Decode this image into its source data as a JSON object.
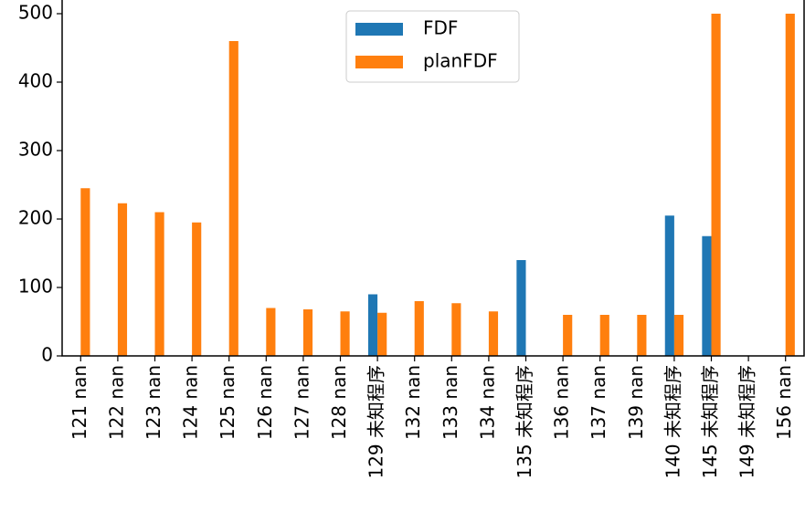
{
  "chart_data": {
    "type": "bar",
    "categories": [
      "121 nan",
      "122 nan",
      "123 nan",
      "124 nan",
      "125 nan",
      "126 nan",
      "127 nan",
      "128 nan",
      "129 未知程序",
      "132 nan",
      "133 nan",
      "134 nan",
      "135 未知程序",
      "136 nan",
      "137 nan",
      "139 nan",
      "140 未知程序",
      "145 未知程序",
      "149 未知程序",
      "156 nan"
    ],
    "series": [
      {
        "name": "FDF",
        "color": "#1f77b4",
        "values": [
          null,
          null,
          null,
          null,
          null,
          null,
          null,
          null,
          90,
          null,
          null,
          null,
          140,
          null,
          null,
          null,
          205,
          175,
          null,
          null
        ]
      },
      {
        "name": "planFDF",
        "color": "#ff7f0e",
        "values": [
          245,
          223,
          210,
          195,
          460,
          70,
          68,
          65,
          63,
          80,
          77,
          65,
          null,
          60,
          60,
          60,
          60,
          500,
          null,
          500
        ]
      }
    ],
    "ylim": [
      0,
      520
    ],
    "yticks": [
      0,
      100,
      200,
      300,
      400,
      500
    ],
    "legend": "upper center"
  }
}
